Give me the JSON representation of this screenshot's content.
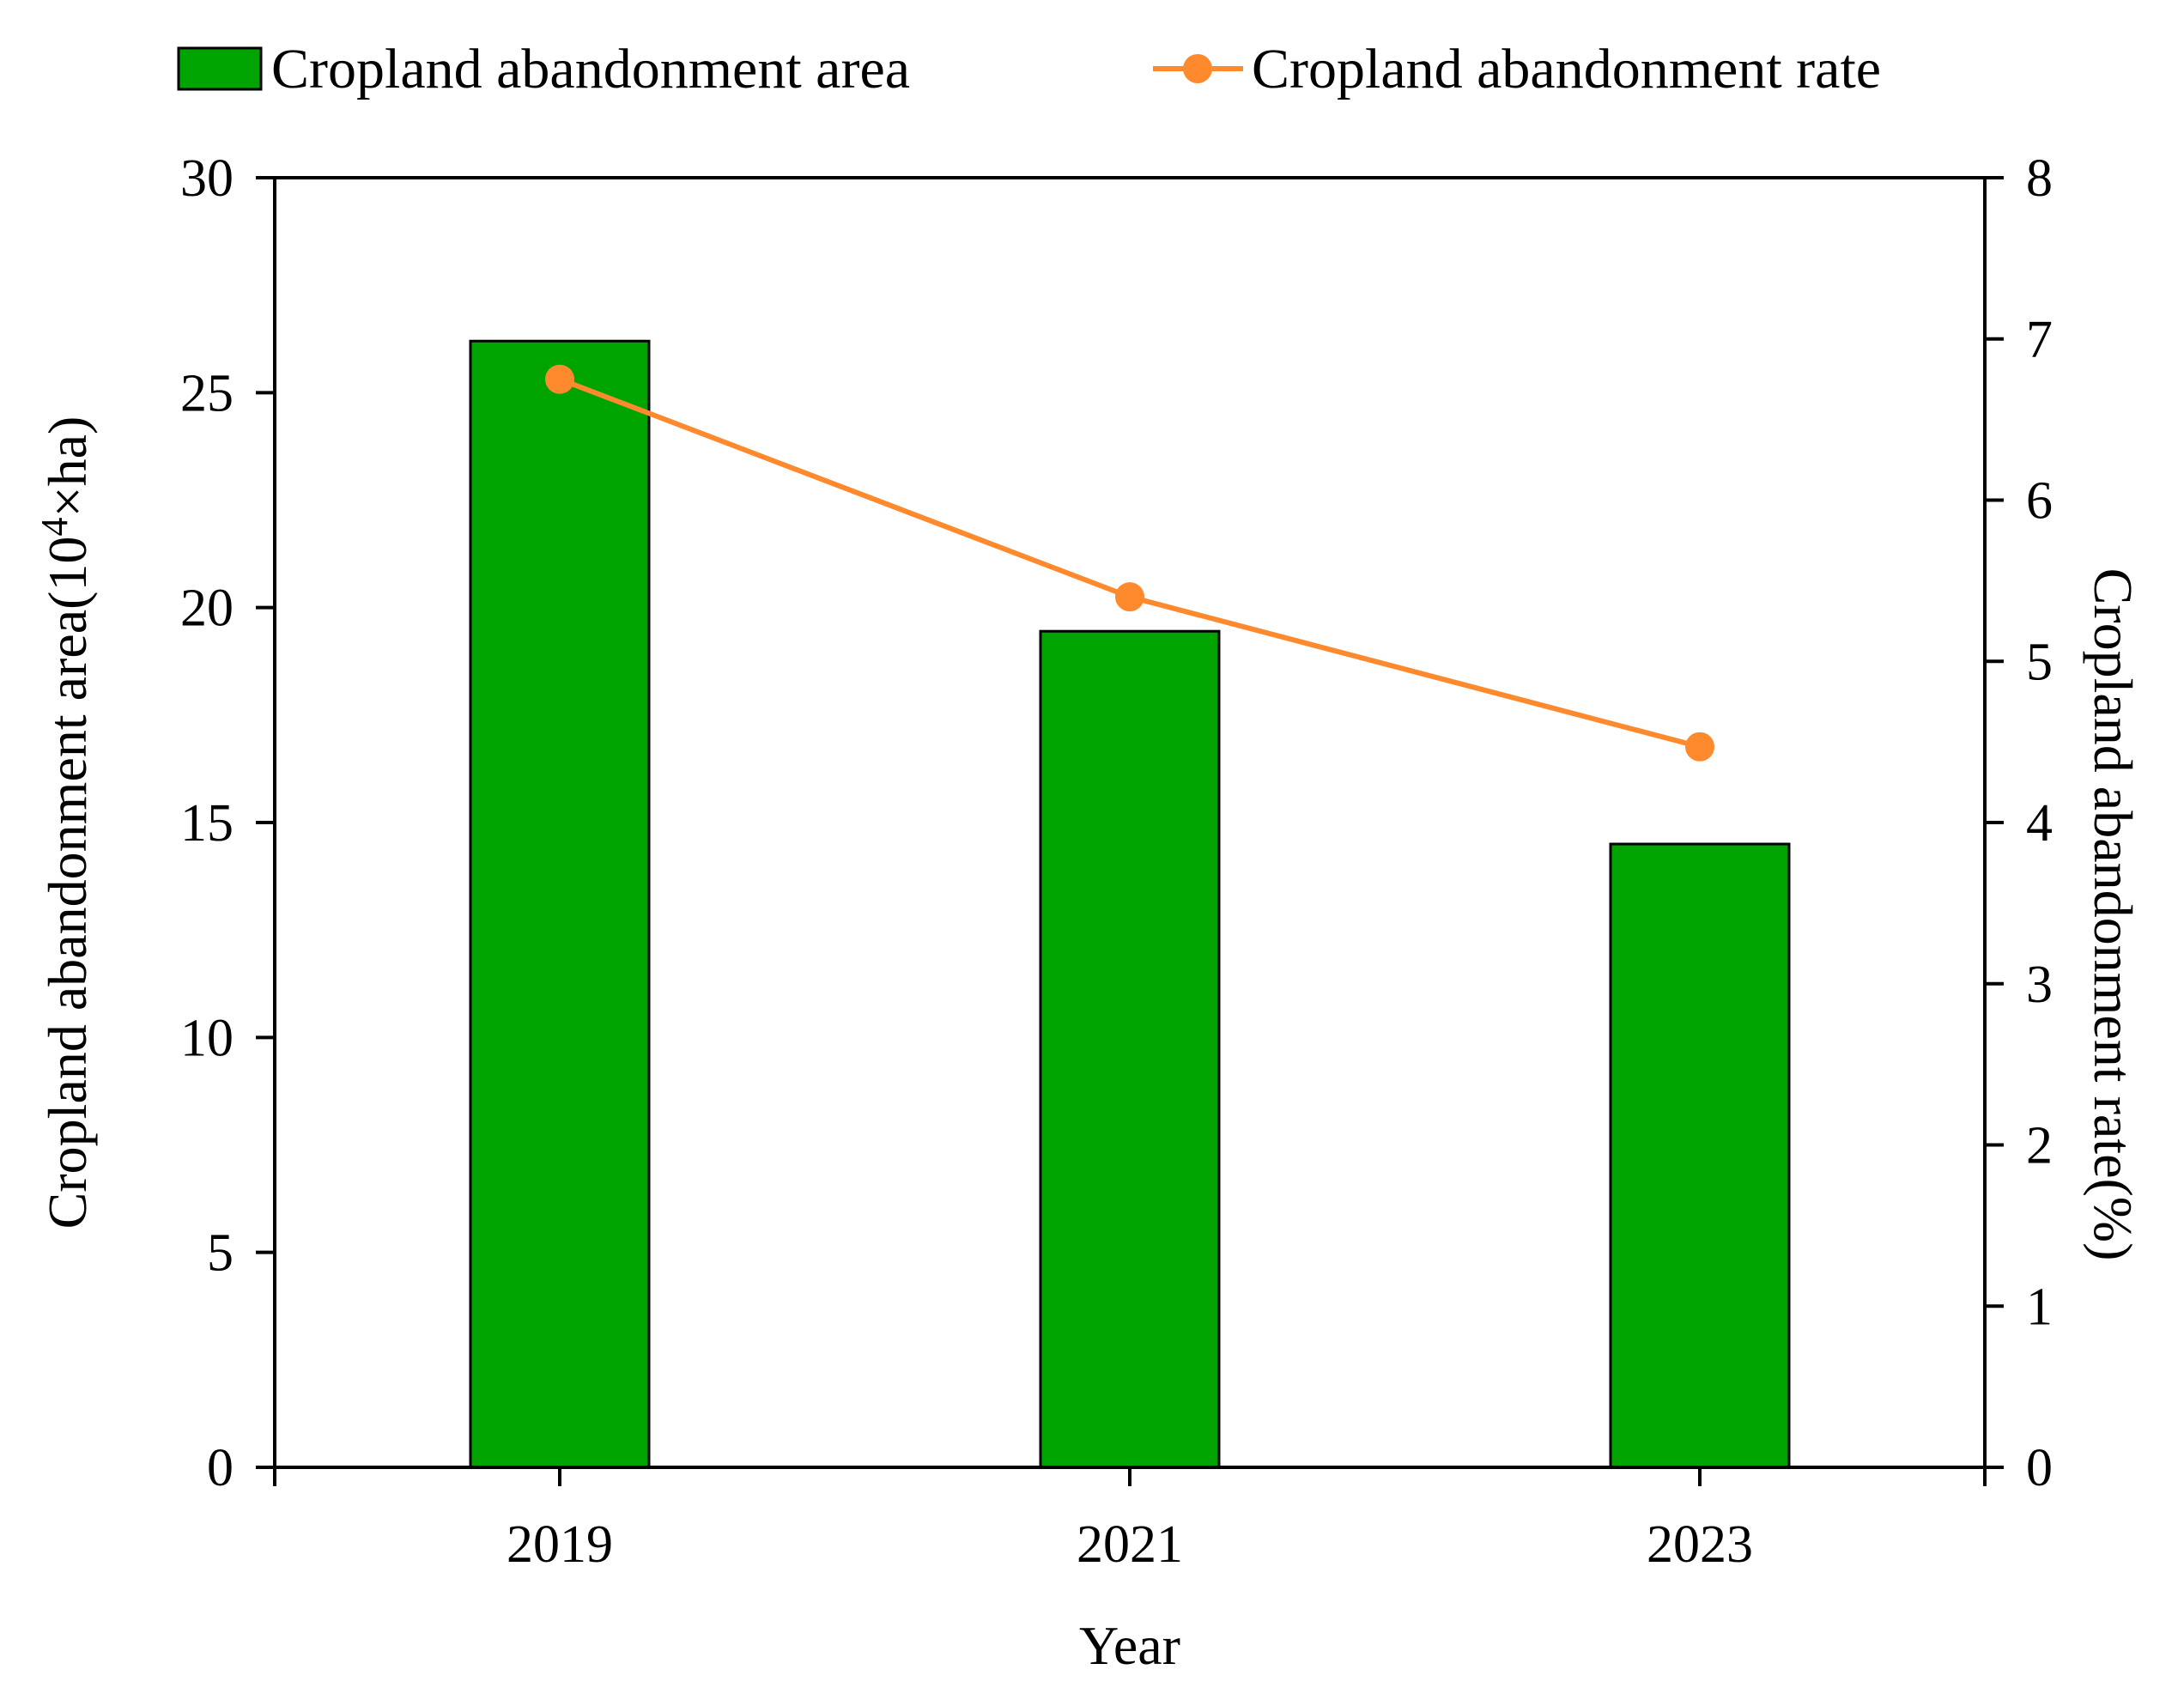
{
  "chart_data": {
    "type": "bar",
    "categories": [
      "2019",
      "2021",
      "2023"
    ],
    "xlabel": "Year",
    "ylabel": {
      "prefix": "Cropland abandonment  area(10",
      "sup": "4",
      "suffix": "×ha)"
    },
    "y2label": "Cropland abandonment  rate(%)",
    "ylim": [
      0,
      30
    ],
    "y2lim": [
      0,
      8
    ],
    "yticks": [
      "0",
      "5",
      "10",
      "15",
      "20",
      "25",
      "30"
    ],
    "y2ticks": [
      "0",
      "1",
      "2",
      "3",
      "4",
      "5",
      "6",
      "7",
      "8"
    ],
    "legend_position": "top",
    "grid": false,
    "series": [
      {
        "name": "Cropland abandonment area",
        "type": "bar",
        "axis": "left",
        "color": "#00a400",
        "values": [
          26.2,
          19.45,
          14.5
        ]
      },
      {
        "name": "Cropland abandonment rate",
        "type": "line",
        "axis": "right",
        "color": "#ff8a2e",
        "values": [
          6.75,
          5.4,
          4.47
        ]
      }
    ]
  }
}
